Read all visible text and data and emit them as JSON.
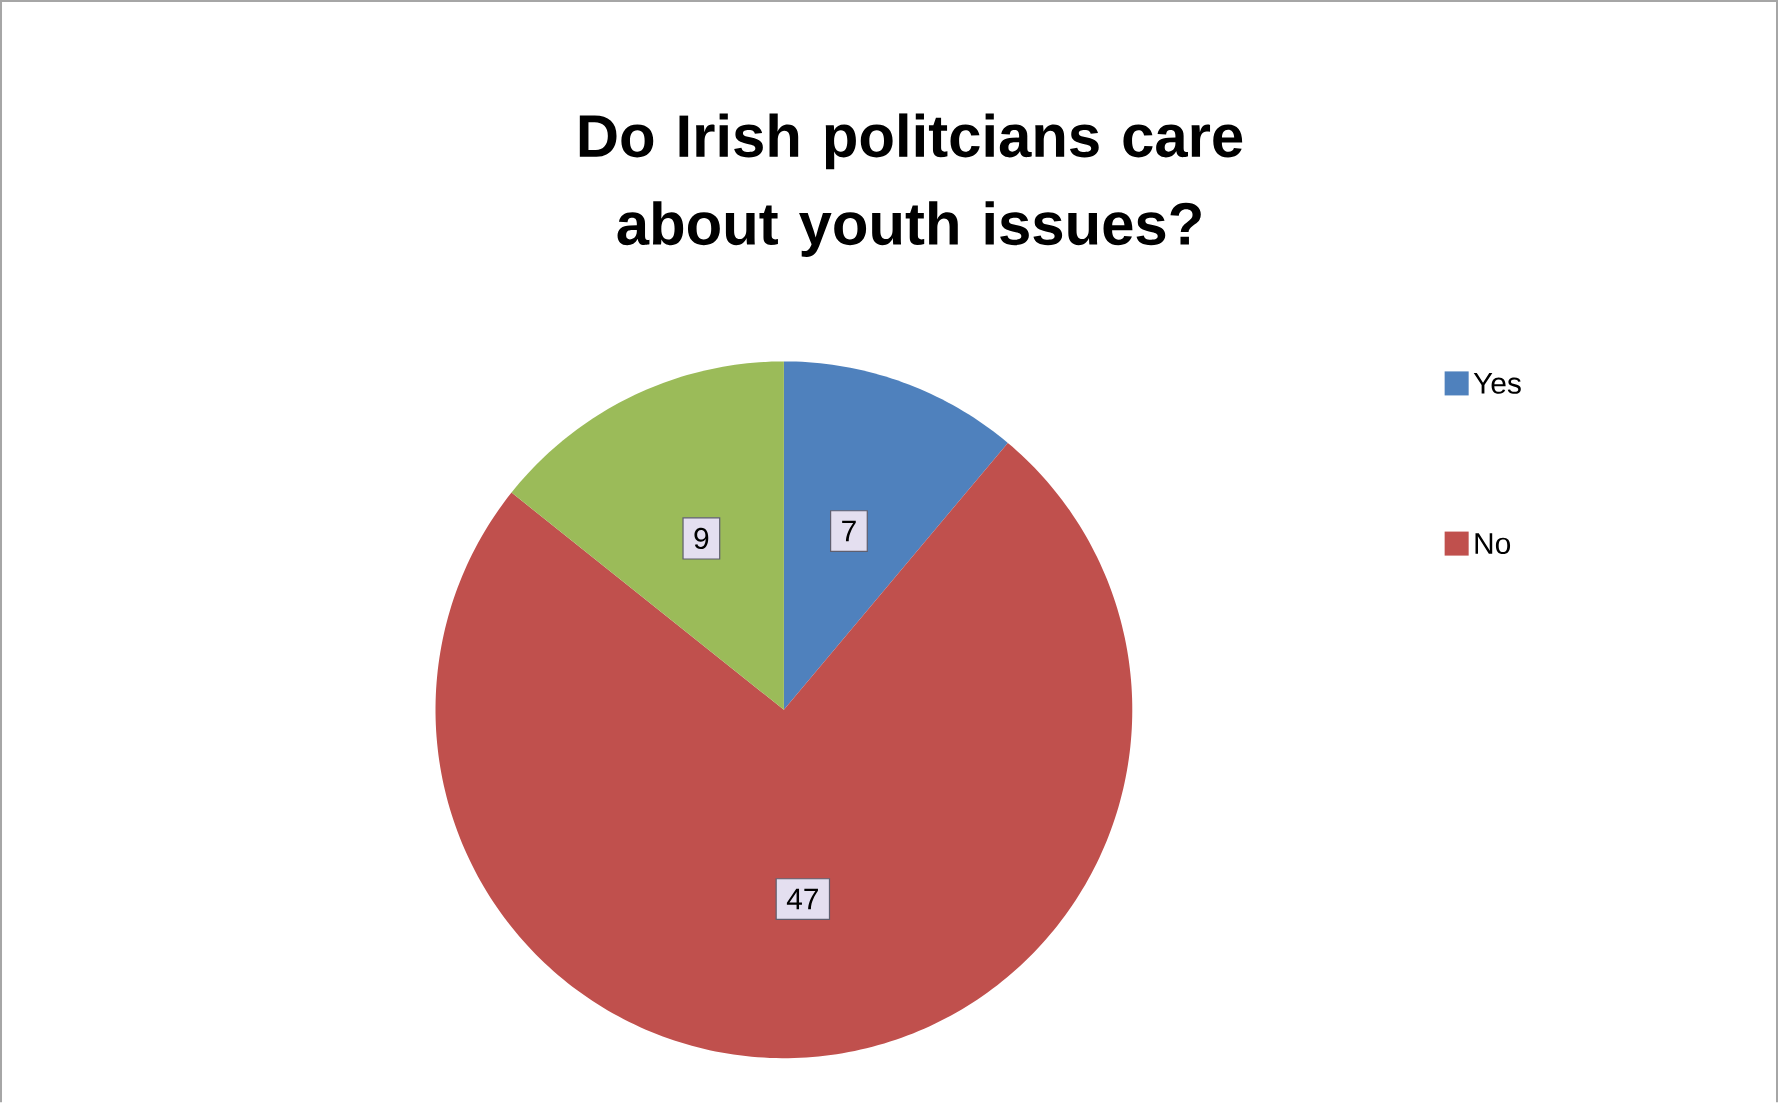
{
  "chart_data": {
    "type": "pie",
    "title": "Do Irish politcians care about youth issues?",
    "categories": [
      "Yes",
      "No",
      null
    ],
    "values": [
      7,
      47,
      9
    ],
    "colors": [
      "#4f81bd",
      "#c0504d",
      "#9bbb59"
    ],
    "data_labels": true,
    "legend": "right"
  }
}
